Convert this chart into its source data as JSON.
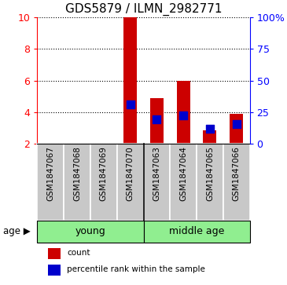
{
  "title": "GDS5879 / ILMN_2982771",
  "samples": [
    "GSM1847067",
    "GSM1847068",
    "GSM1847069",
    "GSM1847070",
    "GSM1847063",
    "GSM1847064",
    "GSM1847065",
    "GSM1847066"
  ],
  "counts": [
    2.0,
    2.0,
    2.0,
    10.0,
    4.9,
    6.0,
    2.85,
    3.9
  ],
  "percentiles": [
    null,
    null,
    null,
    4.5,
    3.55,
    3.8,
    2.97,
    3.25
  ],
  "ylim_left": [
    2,
    10
  ],
  "ylim_right": [
    0,
    100
  ],
  "yticks_left": [
    2,
    4,
    6,
    8,
    10
  ],
  "yticks_right": [
    0,
    25,
    50,
    75,
    100
  ],
  "ytick_labels_right": [
    "0",
    "25",
    "50",
    "75",
    "100%"
  ],
  "bar_color": "#CC0000",
  "percentile_color": "#0000CC",
  "bar_width": 0.5,
  "label_bg": "#C8C8C8",
  "group_color": "#90EE90",
  "title_fontsize": 11,
  "sample_fontsize": 7.5,
  "group_fontsize": 9,
  "tick_fontsize": 9,
  "legend_count": "count",
  "legend_pct": "percentile rank within the sample",
  "legend_fontsize": 7.5,
  "age_label": "age",
  "young_label": "young",
  "middle_label": "middle age"
}
